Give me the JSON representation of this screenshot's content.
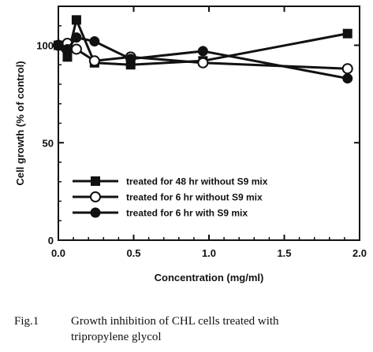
{
  "chart_data": {
    "type": "line",
    "title": "",
    "xlabel": "Concentration (mg/ml)",
    "ylabel": "Cell growth (% of control)",
    "xlim": [
      0,
      2.0
    ],
    "ylim": [
      0,
      120
    ],
    "x_ticks": [
      0,
      0.5,
      1.0,
      1.5,
      2.0
    ],
    "x_tick_labels": [
      "0.0",
      "0.5",
      "1.0",
      "1.5",
      "2.0"
    ],
    "y_ticks": [
      0,
      50,
      100
    ],
    "y_tick_labels": [
      "0",
      "50",
      "100"
    ],
    "grid": false,
    "legend_position": "bottom-left",
    "series": [
      {
        "name": "treated for 48 hr without S9 mix",
        "marker": "square-filled",
        "x": [
          0,
          0.06,
          0.12,
          0.24,
          0.48,
          0.96,
          1.92
        ],
        "y": [
          100,
          94,
          113,
          91,
          90,
          92,
          106
        ]
      },
      {
        "name": "treated for 6 hr without S9 mix",
        "marker": "circle-open",
        "x": [
          0,
          0.06,
          0.12,
          0.24,
          0.48,
          0.96,
          1.92
        ],
        "y": [
          100,
          101,
          98,
          92,
          94,
          91,
          88
        ]
      },
      {
        "name": "treated for 6 hr with S9 mix",
        "marker": "circle-filled",
        "x": [
          0,
          0.06,
          0.12,
          0.24,
          0.48,
          0.96,
          1.92
        ],
        "y": [
          100,
          98,
          104,
          102,
          93,
          97,
          83
        ]
      }
    ]
  },
  "caption": {
    "figure_number": "Fig.1",
    "text_line1": "Growth inhibition of CHL cells treated with",
    "text_line2": "tripropylene glycol"
  }
}
